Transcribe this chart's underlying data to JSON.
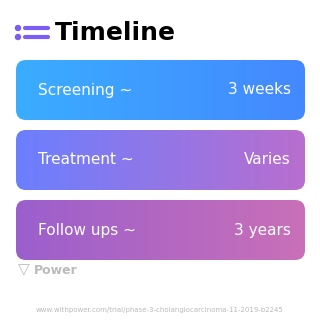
{
  "title": "Timeline",
  "title_icon_color": "#7B5CF5",
  "background_color": "#ffffff",
  "rows": [
    {
      "label": "Screening ~",
      "value": "3 weeks",
      "gradient_left": "#3AADFF",
      "gradient_right": "#4488FF"
    },
    {
      "label": "Treatment ~",
      "value": "Varies",
      "gradient_left": "#6B7FFF",
      "gradient_right": "#B96ECE"
    },
    {
      "label": "Follow ups ~",
      "value": "3 years",
      "gradient_left": "#9B5FCC",
      "gradient_right": "#C970B8"
    }
  ],
  "row_text_color": "#ffffff",
  "footer_text": "Power",
  "footer_url": "www.withpower.com/trial/phase-3-cholangiocarcinoma-11-2019-b2245",
  "footer_color": "#bbbbbb",
  "title_fontsize": 18,
  "row_fontsize": 11,
  "footer_fontsize": 9,
  "url_fontsize": 5
}
